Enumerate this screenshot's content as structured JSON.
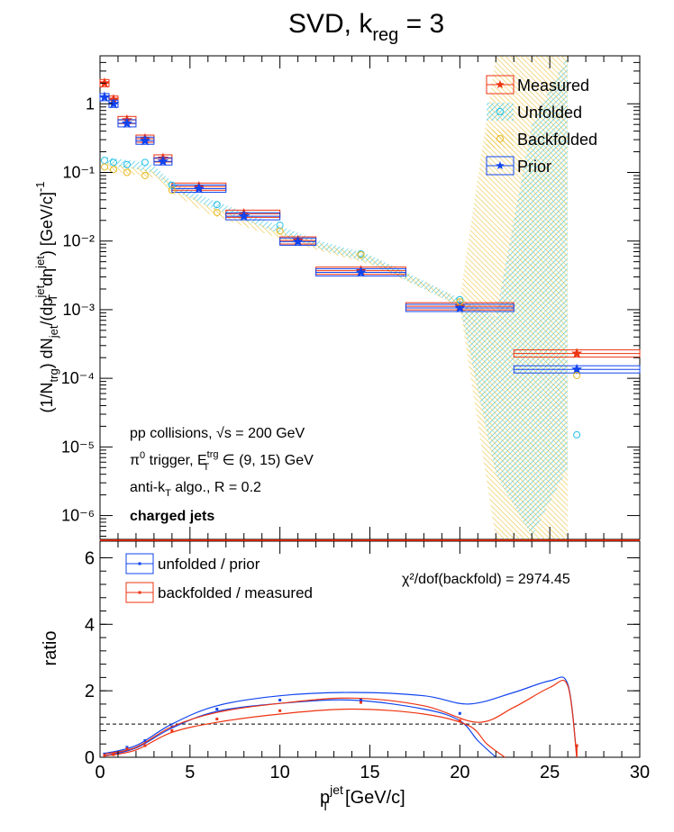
{
  "title": {
    "main": "SVD, k",
    "sub": "reg",
    "tail": " = 3"
  },
  "legend_top": [
    {
      "label": "Measured",
      "color": "#ee3311",
      "marker": "star"
    },
    {
      "label": "Unfolded",
      "color": "#22c0e8",
      "marker": "circle-open"
    },
    {
      "label": "Backfolded",
      "color": "#e8b820",
      "marker": "circle-open"
    },
    {
      "label": "Prior",
      "color": "#1144ee",
      "marker": "star"
    }
  ],
  "legend_bottom": [
    {
      "label": "unfolded / prior",
      "color": "#1144ee"
    },
    {
      "label": "backfolded / measured",
      "color": "#ee3311"
    }
  ],
  "annotations": {
    "line1_a": "pp collisions, ",
    "line1_b": "√s",
    "line1_c": " = 200 GeV",
    "line2_a": "π",
    "line2_sup0": "0",
    "line2_b": " trigger, E",
    "line2_sup": "trg",
    "line2_sub": "T",
    "line2_c": " ∈ (9, 15) GeV",
    "line3_a": "anti-k",
    "line3_sub": "T",
    "line3_b": " algo., R = 0.2",
    "line4": "charged jets",
    "chi2": "χ²/dof(backfold) = 2974.45"
  },
  "chart_data": [
    {
      "type": "scatter",
      "panel": "top",
      "ylabel": "(1/N_trg) dN_jet/(dp_T^jet dη^jet) [GeV/c]^-1",
      "xlim": [
        0,
        30
      ],
      "ylim": [
        4.5e-07,
        5
      ],
      "yscale": "log",
      "ytick_labels": [
        "10⁻⁶",
        "10⁻⁵",
        "10⁻⁴",
        "10⁻³",
        "10⁻²",
        "10⁻¹",
        "1"
      ],
      "series": [
        {
          "name": "Measured",
          "marker": "star",
          "color": "#ee3311",
          "points": [
            [
              0.25,
              2.0
            ],
            [
              0.75,
              1.15
            ],
            [
              1.5,
              0.58
            ],
            [
              2.5,
              0.31
            ],
            [
              3.5,
              0.16
            ],
            [
              5.5,
              0.062
            ],
            [
              8.0,
              0.025
            ],
            [
              11.0,
              0.0102
            ],
            [
              14.5,
              0.0037
            ],
            [
              20.0,
              0.00112
            ],
            [
              26.5,
              0.00023
            ]
          ],
          "x_err": [
            [
              0,
              0.5
            ],
            [
              0.5,
              1
            ],
            [
              1,
              2
            ],
            [
              2,
              3
            ],
            [
              3,
              4
            ],
            [
              4,
              7
            ],
            [
              7,
              10
            ],
            [
              10,
              12
            ],
            [
              12,
              17
            ],
            [
              17,
              23
            ],
            [
              23,
              30
            ]
          ]
        },
        {
          "name": "Prior",
          "marker": "star",
          "color": "#1144ee",
          "points": [
            [
              0.25,
              1.25
            ],
            [
              0.75,
              1.0
            ],
            [
              1.5,
              0.52
            ],
            [
              2.5,
              0.29
            ],
            [
              3.5,
              0.145
            ],
            [
              5.5,
              0.058
            ],
            [
              8.0,
              0.023
            ],
            [
              11.0,
              0.0098
            ],
            [
              14.5,
              0.0035
            ],
            [
              20.0,
              0.00106
            ],
            [
              26.5,
              0.000135
            ]
          ],
          "x_err": [
            [
              0,
              0.5
            ],
            [
              0.5,
              1
            ],
            [
              1,
              2
            ],
            [
              2,
              3
            ],
            [
              3,
              4
            ],
            [
              4,
              7
            ],
            [
              7,
              10
            ],
            [
              10,
              12
            ],
            [
              12,
              17
            ],
            [
              17,
              23
            ],
            [
              23,
              30
            ]
          ]
        },
        {
          "name": "Unfolded",
          "marker": "circle-open",
          "color": "#22c0e8",
          "points": [
            [
              0.25,
              0.15
            ],
            [
              0.75,
              0.14
            ],
            [
              1.5,
              0.13
            ],
            [
              2.5,
              0.14
            ],
            [
              4.0,
              0.065
            ],
            [
              6.5,
              0.034
            ],
            [
              10.0,
              0.017
            ],
            [
              14.5,
              0.0065
            ],
            [
              20.0,
              0.0014
            ],
            [
              26.5,
              1.5e-05
            ]
          ]
        },
        {
          "name": "Backfolded",
          "marker": "circle-open",
          "color": "#e8b820",
          "points": [
            [
              0.25,
              0.12
            ],
            [
              0.75,
              0.11
            ],
            [
              1.5,
              0.1
            ],
            [
              2.5,
              0.09
            ],
            [
              4.0,
              0.055
            ],
            [
              6.5,
              0.026
            ],
            [
              10.0,
              0.014
            ],
            [
              14.5,
              0.0063
            ],
            [
              20.0,
              0.0013
            ],
            [
              26.5,
              0.00011
            ]
          ]
        }
      ]
    },
    {
      "type": "line",
      "panel": "bottom",
      "xlabel": "p_T^jet [GeV/c]",
      "ylabel": "ratio",
      "xlim": [
        0,
        30
      ],
      "ylim": [
        0,
        6.5
      ],
      "x_ticks": [
        0,
        5,
        10,
        15,
        20,
        25,
        30
      ],
      "y_ticks": [
        0,
        2,
        4,
        6
      ],
      "reference_line": 1,
      "series": [
        {
          "name": "unfolded / prior",
          "color": "#1144ee",
          "points": [
            [
              0.25,
              0.1
            ],
            [
              0.75,
              0.1
            ],
            [
              1.5,
              0.3
            ],
            [
              2.5,
              0.5
            ],
            [
              4.0,
              0.92
            ],
            [
              6.5,
              1.45
            ],
            [
              10.0,
              1.72
            ],
            [
              14.5,
              1.72
            ],
            [
              20.0,
              1.32
            ]
          ],
          "band_upper": [
            [
              0.3,
              0.12
            ],
            [
              2,
              0.35
            ],
            [
              4,
              1.0
            ],
            [
              6.5,
              1.55
            ],
            [
              10,
              1.85
            ],
            [
              14,
              1.95
            ],
            [
              18,
              1.85
            ],
            [
              20.5,
              1.6
            ],
            [
              23,
              1.95
            ],
            [
              25,
              2.3
            ],
            [
              26,
              2.2
            ],
            [
              26.5,
              0.0
            ]
          ],
          "band_lower": [
            [
              0.3,
              0.05
            ],
            [
              2,
              0.28
            ],
            [
              4,
              0.88
            ],
            [
              6.5,
              1.38
            ],
            [
              10,
              1.62
            ],
            [
              14,
              1.72
            ],
            [
              18,
              1.45
            ],
            [
              20,
              1.1
            ],
            [
              21,
              0.5
            ],
            [
              22,
              0.0
            ]
          ]
        },
        {
          "name": "backfolded / measured",
          "color": "#ee3311",
          "points": [
            [
              0.25,
              0.06
            ],
            [
              0.75,
              0.08
            ],
            [
              1.5,
              0.25
            ],
            [
              2.5,
              0.35
            ],
            [
              4.0,
              0.8
            ],
            [
              6.5,
              1.15
            ],
            [
              10.0,
              1.4
            ],
            [
              14.5,
              1.65
            ],
            [
              20.0,
              1.1
            ],
            [
              26.5,
              0.35
            ]
          ],
          "band_upper": [
            [
              0.3,
              0.1
            ],
            [
              2,
              0.3
            ],
            [
              4,
              0.92
            ],
            [
              6.5,
              1.35
            ],
            [
              10,
              1.62
            ],
            [
              14,
              1.78
            ],
            [
              18,
              1.55
            ],
            [
              21,
              1.05
            ],
            [
              23,
              1.5
            ],
            [
              25,
              2.1
            ],
            [
              26,
              2.15
            ],
            [
              26.5,
              0.0
            ]
          ],
          "band_lower": [
            [
              0.3,
              0.04
            ],
            [
              2,
              0.22
            ],
            [
              4,
              0.75
            ],
            [
              6.5,
              1.05
            ],
            [
              10,
              1.3
            ],
            [
              14,
              1.45
            ],
            [
              18,
              1.3
            ],
            [
              20.5,
              0.95
            ],
            [
              21.5,
              0.4
            ],
            [
              22.5,
              0.0
            ]
          ]
        }
      ]
    }
  ]
}
